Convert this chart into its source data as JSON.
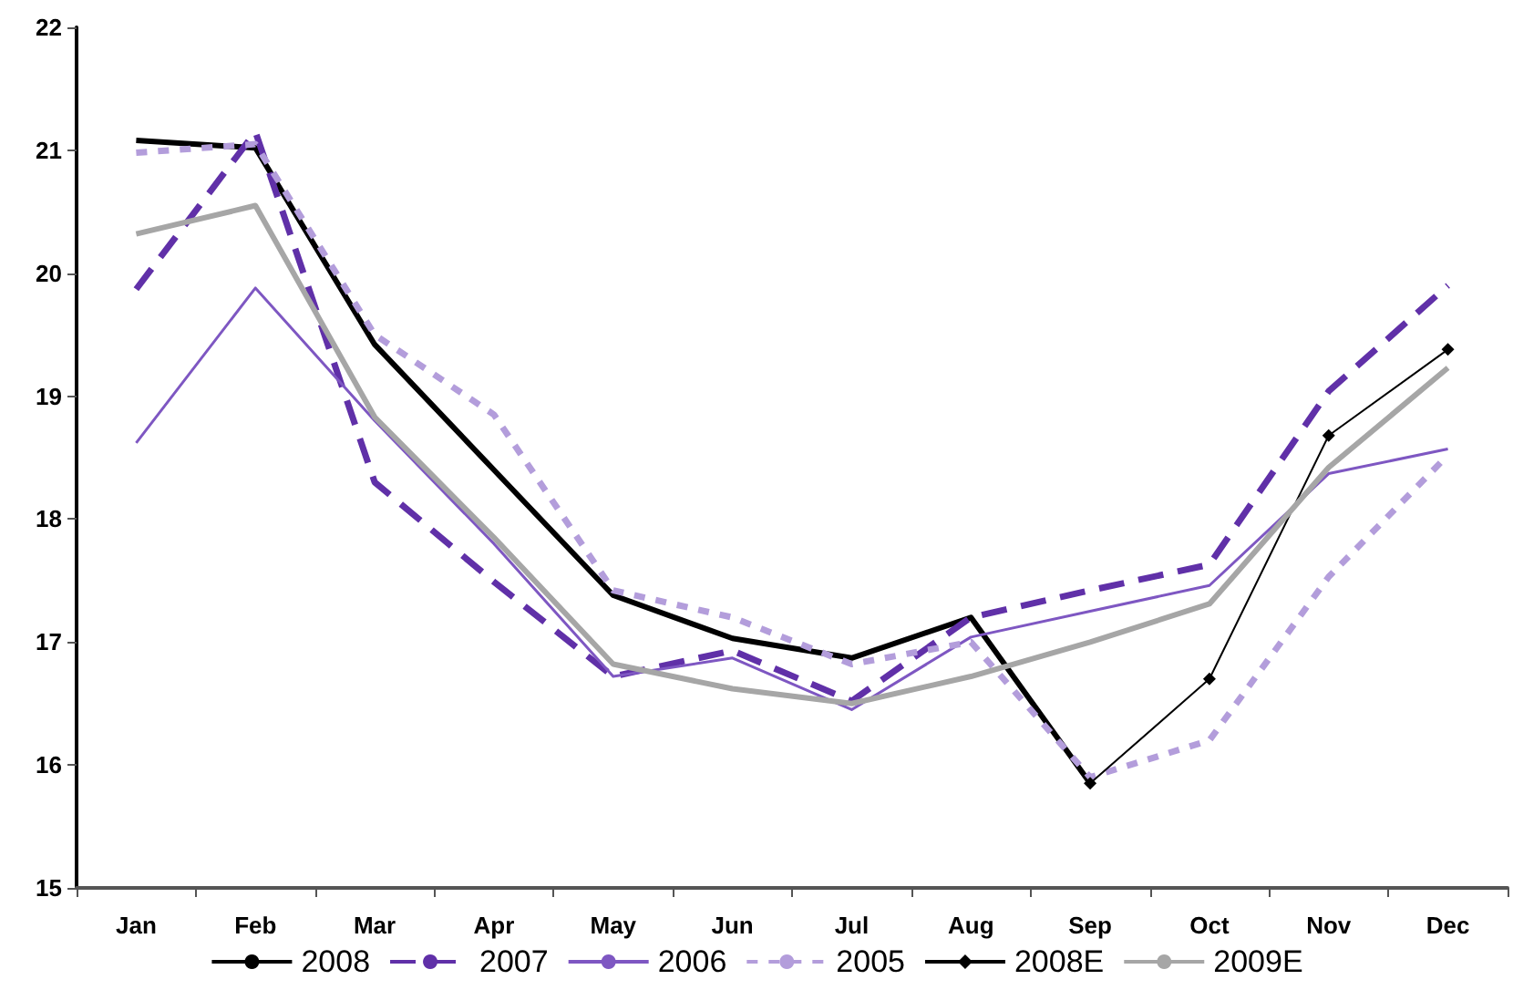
{
  "chart_data": {
    "type": "line",
    "categories": [
      "Jan",
      "Feb",
      "Mar",
      "Apr",
      "May",
      "Jun",
      "Jul",
      "Aug",
      "Sep",
      "Oct",
      "Nov",
      "Dec"
    ],
    "ylim": [
      15,
      22
    ],
    "yticks": [
      15,
      16,
      17,
      18,
      19,
      20,
      21,
      22
    ],
    "grid": false,
    "legend": "bottom",
    "marker": "none",
    "series": [
      {
        "name": "2008",
        "color": "#000000",
        "line_style": "solid",
        "values": [
          21.08,
          21.02,
          19.42,
          18.4,
          17.38,
          17.03,
          16.87,
          17.2,
          15.85,
          null,
          null,
          null
        ]
      },
      {
        "name": "2007",
        "color": "#6030a8",
        "line_style": "dashed",
        "values": [
          19.87,
          21.15,
          18.3,
          17.49,
          16.72,
          16.93,
          16.52,
          17.2,
          17.42,
          17.63,
          19.04,
          19.9
        ]
      },
      {
        "name": "2006",
        "color": "#7e57c2",
        "line_style": "solid",
        "values": [
          18.62,
          19.88,
          18.8,
          17.8,
          16.72,
          16.87,
          16.45,
          17.04,
          17.25,
          17.46,
          18.37,
          18.57
        ]
      },
      {
        "name": "2005",
        "color": "#b39ddb",
        "line_style": "dotted",
        "values": [
          20.98,
          21.05,
          19.5,
          18.85,
          17.42,
          17.2,
          16.82,
          17.0,
          15.9,
          16.2,
          17.53,
          18.52
        ]
      },
      {
        "name": "2008E",
        "color": "#000000",
        "line_style": "solid",
        "marker": "diamond",
        "values": [
          null,
          null,
          null,
          null,
          null,
          null,
          null,
          null,
          15.85,
          16.7,
          18.68,
          19.38
        ]
      },
      {
        "name": "2009E",
        "color": "#a6a6a6",
        "line_style": "solid",
        "values": [
          20.32,
          20.55,
          18.83,
          17.85,
          16.82,
          16.62,
          16.5,
          16.72,
          17.0,
          17.31,
          18.42,
          19.23
        ]
      }
    ]
  }
}
